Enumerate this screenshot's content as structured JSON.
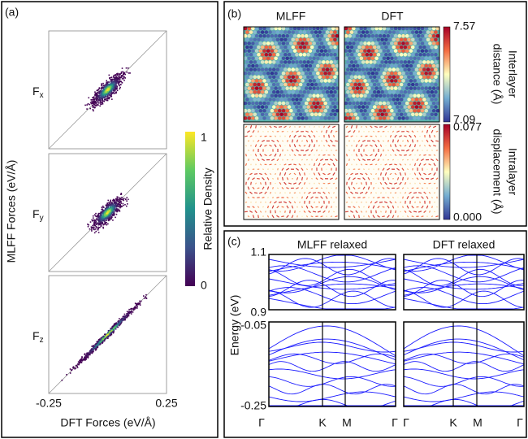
{
  "panel_a": {
    "label": "(a)",
    "components": [
      {
        "label": "F",
        "subscript": "x"
      },
      {
        "label": "F",
        "subscript": "y"
      },
      {
        "label": "F",
        "subscript": "z"
      }
    ],
    "colorbar": {
      "title": "Relative Density",
      "ticks": [
        "1",
        "0"
      ]
    },
    "y_label": "MLFF Forces (eV/Å)",
    "x_label": "DFT Forces (eV/Å)",
    "x_ticks": [
      "-0.25",
      "0.25"
    ]
  },
  "panel_b": {
    "label": "(b)",
    "columns": [
      "MLFF",
      "DFT"
    ],
    "rows": [
      {
        "title": [
          "Interlayer",
          "distance (Å)"
        ],
        "ticks": [
          "7.57",
          "7.09"
        ]
      },
      {
        "title": [
          "Intralayer",
          "displacement (Å)"
        ],
        "ticks": [
          "0.077",
          "0.000"
        ]
      }
    ]
  },
  "panel_c": {
    "label": "(c)",
    "columns": [
      "MLFF relaxed",
      "DFT relaxed"
    ],
    "y_label": "Energy (eV)",
    "top_ticks": [
      "1.1",
      "0.9"
    ],
    "bottom_ticks": [
      "-0.05",
      "-0.25"
    ],
    "k_labels": [
      "Γ",
      "K",
      "M",
      "Γ"
    ]
  }
}
